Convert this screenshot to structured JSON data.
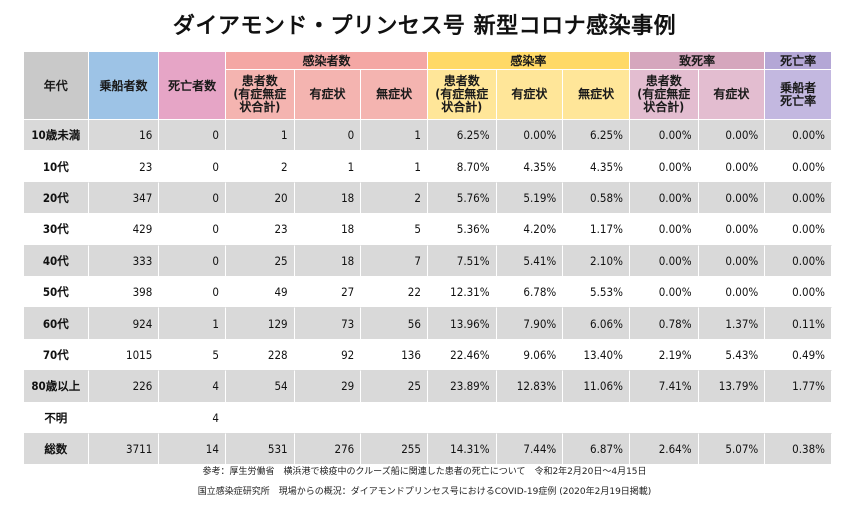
{
  "title": "ダイアモンド・プリンセス号  新型コロナ感染事例",
  "header": {
    "age": "年代",
    "passengers": "乗船者数",
    "deaths": "死亡者数",
    "infected_group": "感染者数",
    "rate_group": "感染率",
    "fatality_group": "致死率",
    "mortality_group": "死亡率",
    "patients_line1": "患者数",
    "patients_line2": "(有症無症",
    "patients_line3": "状合計)",
    "symptomatic": "有症状",
    "asymptomatic": "無症状",
    "mortality_line1": "乗船者",
    "mortality_line2": "死亡率"
  },
  "rows": [
    {
      "age": "10歳未満",
      "passengers": "16",
      "deaths": "0",
      "patients": "1",
      "symptomatic": "0",
      "asymptomatic": "1",
      "rate_total": "6.25%",
      "rate_sym": "0.00%",
      "rate_asym": "6.25%",
      "fat_total": "0.00%",
      "fat_sym": "0.00%",
      "mortality": "0.00%"
    },
    {
      "age": "10代",
      "passengers": "23",
      "deaths": "0",
      "patients": "2",
      "symptomatic": "1",
      "asymptomatic": "1",
      "rate_total": "8.70%",
      "rate_sym": "4.35%",
      "rate_asym": "4.35%",
      "fat_total": "0.00%",
      "fat_sym": "0.00%",
      "mortality": "0.00%"
    },
    {
      "age": "20代",
      "passengers": "347",
      "deaths": "0",
      "patients": "20",
      "symptomatic": "18",
      "asymptomatic": "2",
      "rate_total": "5.76%",
      "rate_sym": "5.19%",
      "rate_asym": "0.58%",
      "fat_total": "0.00%",
      "fat_sym": "0.00%",
      "mortality": "0.00%"
    },
    {
      "age": "30代",
      "passengers": "429",
      "deaths": "0",
      "patients": "23",
      "symptomatic": "18",
      "asymptomatic": "5",
      "rate_total": "5.36%",
      "rate_sym": "4.20%",
      "rate_asym": "1.17%",
      "fat_total": "0.00%",
      "fat_sym": "0.00%",
      "mortality": "0.00%"
    },
    {
      "age": "40代",
      "passengers": "333",
      "deaths": "0",
      "patients": "25",
      "symptomatic": "18",
      "asymptomatic": "7",
      "rate_total": "7.51%",
      "rate_sym": "5.41%",
      "rate_asym": "2.10%",
      "fat_total": "0.00%",
      "fat_sym": "0.00%",
      "mortality": "0.00%"
    },
    {
      "age": "50代",
      "passengers": "398",
      "deaths": "0",
      "patients": "49",
      "symptomatic": "27",
      "asymptomatic": "22",
      "rate_total": "12.31%",
      "rate_sym": "6.78%",
      "rate_asym": "5.53%",
      "fat_total": "0.00%",
      "fat_sym": "0.00%",
      "mortality": "0.00%"
    },
    {
      "age": "60代",
      "passengers": "924",
      "deaths": "1",
      "patients": "129",
      "symptomatic": "73",
      "asymptomatic": "56",
      "rate_total": "13.96%",
      "rate_sym": "7.90%",
      "rate_asym": "6.06%",
      "fat_total": "0.78%",
      "fat_sym": "1.37%",
      "mortality": "0.11%"
    },
    {
      "age": "70代",
      "passengers": "1015",
      "deaths": "5",
      "patients": "228",
      "symptomatic": "92",
      "asymptomatic": "136",
      "rate_total": "22.46%",
      "rate_sym": "9.06%",
      "rate_asym": "13.40%",
      "fat_total": "2.19%",
      "fat_sym": "5.43%",
      "mortality": "0.49%"
    },
    {
      "age": "80歳以上",
      "passengers": "226",
      "deaths": "4",
      "patients": "54",
      "symptomatic": "29",
      "asymptomatic": "25",
      "rate_total": "23.89%",
      "rate_sym": "12.83%",
      "rate_asym": "11.06%",
      "fat_total": "7.41%",
      "fat_sym": "13.79%",
      "mortality": "1.77%"
    },
    {
      "age": "不明",
      "passengers": "",
      "deaths": "4",
      "patients": "",
      "symptomatic": "",
      "asymptomatic": "",
      "rate_total": "",
      "rate_sym": "",
      "rate_asym": "",
      "fat_total": "",
      "fat_sym": "",
      "mortality": ""
    },
    {
      "age": "総数",
      "passengers": "3711",
      "deaths": "14",
      "patients": "531",
      "symptomatic": "276",
      "asymptomatic": "255",
      "rate_total": "14.31%",
      "rate_sym": "7.44%",
      "rate_asym": "6.87%",
      "fat_total": "2.64%",
      "fat_sym": "5.07%",
      "mortality": "0.38%"
    }
  ],
  "notes": {
    "line1": "参考：厚生労働省　横浜港で検疫中のクルーズ船に関連した患者の死亡について　令和2年2月20日～4月15日",
    "line2": "国立感染症研究所　現場からの概況：ダイアモンドプリンセス号におけるCOVID-19症例 (2020年2月19日掲載)"
  },
  "colors": {
    "age_header": "#c9c9c9",
    "passengers_header": "#9dc3e6",
    "deaths_header": "#e6a5c6",
    "infected_header": "#f4a7a4",
    "rate_header": "#ffd966",
    "fatality_header": "#d5a6bd",
    "mortality_header": "#b4a7d6",
    "stripe": "#d9d9d9"
  }
}
